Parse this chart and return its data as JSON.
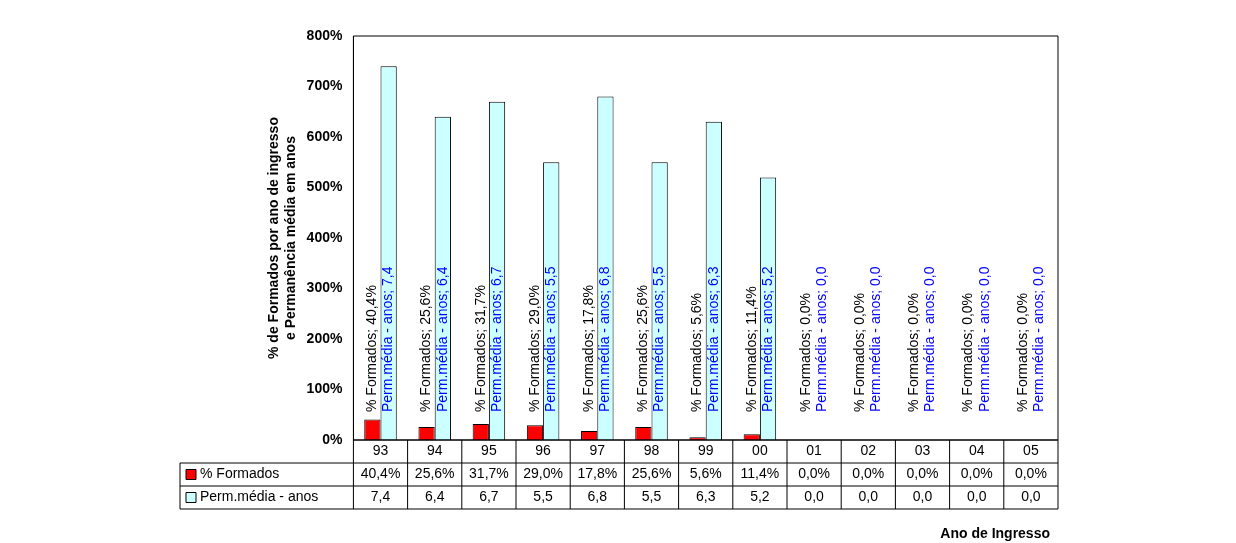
{
  "chart_data": {
    "type": "bar",
    "xlabel": "Ano de Ingresso",
    "ylabel": "% de Formados por ano de ingresso\ne Permanência média em anos",
    "categories": [
      "93",
      "94",
      "95",
      "96",
      "97",
      "98",
      "99",
      "00",
      "01",
      "02",
      "03",
      "04",
      "05"
    ],
    "series": [
      {
        "name": "% Formados",
        "color": "#ff0000",
        "values": [
          0.404,
          0.256,
          0.317,
          0.29,
          0.178,
          0.256,
          0.056,
          0.114,
          0,
          0,
          0,
          0,
          0
        ],
        "value_labels": [
          "40,4%",
          "25,6%",
          "31,7%",
          "29,0%",
          "17,8%",
          "25,6%",
          "5,6%",
          "11,4%",
          "0,0%",
          "0,0%",
          "0,0%",
          "0,0%",
          "0,0%"
        ]
      },
      {
        "name": "Perm.média - anos",
        "color": "#ccffff",
        "values": [
          7.4,
          6.4,
          6.7,
          5.5,
          6.8,
          5.5,
          6.3,
          5.2,
          0,
          0,
          0,
          0,
          0
        ],
        "value_labels": [
          "7,4",
          "6,4",
          "6,7",
          "5,5",
          "6,8",
          "5,5",
          "6,3",
          "5,2",
          "0,0",
          "0,0",
          "0,0",
          "0,0",
          "0,0"
        ]
      }
    ],
    "ylim": [
      0,
      8
    ],
    "yticks": [
      {
        "value": 0,
        "label": "0%"
      },
      {
        "value": 1,
        "label": "100%"
      },
      {
        "value": 2,
        "label": "200%"
      },
      {
        "value": 3,
        "label": "300%"
      },
      {
        "value": 4,
        "label": "400%"
      },
      {
        "value": 5,
        "label": "500%"
      },
      {
        "value": 6,
        "label": "600%"
      },
      {
        "value": 7,
        "label": "700%"
      },
      {
        "value": 8,
        "label": "800%"
      }
    ],
    "grid": false,
    "legend": "bottom",
    "annotations": [
      "% Formados; 40,4%",
      "% Formados; 25,6%",
      "% Formados; 31,7%",
      "% Formados; 29,0%",
      "% Formados; 17,8%",
      "% Formados; 25,6%",
      "% Formados; 5,6%",
      "% Formados; 11,4%",
      "% Formados; 0,0%",
      "% Formados; 0,0%",
      "% Formados; 0,0%",
      "% Formados; 0,0%",
      "% Formados; 0,0%",
      "Perm.média - anos; 7,4",
      "Perm.média - anos; 6,4",
      "Perm.média - anos; 6,7",
      "Perm.média - anos; 5,5",
      "Perm.média - anos; 6,8",
      "Perm.média - anos; 5,5",
      "Perm.média - anos; 6,3",
      "Perm.média - anos; 5,2",
      "Perm.média - anos; 0,0",
      "Perm.média - anos; 0,0",
      "Perm.média - anos; 0,0",
      "Perm.média - anos; 0,0",
      "Perm.média - anos; 0,0"
    ]
  }
}
